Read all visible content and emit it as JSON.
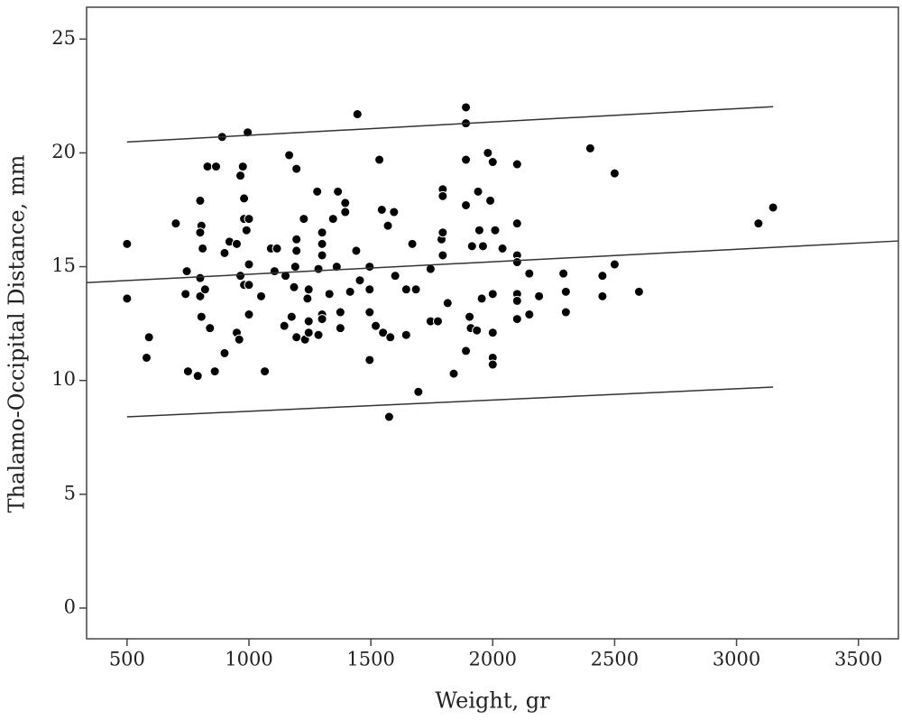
{
  "chart_data": {
    "type": "scatter",
    "x_label": "Weight, gr",
    "y_label": "Thalamo-Occipital Distance, mm",
    "xlim": [
      334,
      3664
    ],
    "ylim": [
      -1.35,
      26.4
    ],
    "xticks": [
      500,
      1000,
      1500,
      2000,
      2500,
      3000,
      3500
    ],
    "yticks": [
      0,
      5,
      10,
      15,
      20,
      25
    ],
    "series": [
      {
        "type": "scatter",
        "color": "#000000",
        "x": [
          500,
          500,
          580,
          590,
          700,
          745,
          740,
          750,
          790,
          800,
          805,
          800,
          810,
          800,
          800,
          820,
          805,
          840,
          830,
          865,
          860,
          890,
          900,
          900,
          920,
          950,
          950,
          960,
          965,
          965,
          975,
          980,
          990,
          980,
          1000,
          995,
          1000,
          980,
          1000,
          1000,
          1050,
          1065,
          1090,
          1115,
          1105,
          1150,
          1145,
          1165,
          1175,
          1185,
          1190,
          1195,
          1195,
          1195,
          1195,
          1225,
          1230,
          1240,
          1245,
          1245,
          1245,
          1280,
          1285,
          1285,
          1300,
          1300,
          1300,
          1300,
          1300,
          1330,
          1345,
          1360,
          1365,
          1375,
          1375,
          1395,
          1395,
          1415,
          1440,
          1455,
          1445,
          1495,
          1495,
          1495,
          1495,
          1520,
          1535,
          1545,
          1550,
          1570,
          1580,
          1575,
          1595,
          1600,
          1645,
          1645,
          1670,
          1685,
          1695,
          1745,
          1745,
          1775,
          1790,
          1795,
          1795,
          1795,
          1795,
          1815,
          1840,
          1890,
          1890,
          1890,
          1890,
          1890,
          1905,
          1910,
          1915,
          1935,
          1940,
          1945,
          1955,
          1980,
          1960,
          1990,
          2000,
          2000,
          2000,
          2000,
          2000,
          2010,
          2040,
          2100,
          2100,
          2100,
          2100,
          2100,
          2100,
          2100,
          2150,
          2150,
          2190,
          2290,
          2300,
          2300,
          2400,
          2450,
          2450,
          2500,
          2500,
          2600,
          3090,
          3150
        ],
        "values": [
          16.0,
          13.6,
          11.0,
          11.9,
          16.9,
          14.8,
          13.8,
          10.4,
          10.2,
          17.9,
          16.8,
          16.5,
          15.8,
          14.5,
          13.7,
          14.0,
          12.8,
          12.3,
          19.4,
          19.4,
          10.4,
          20.7,
          11.2,
          15.6,
          16.1,
          16.0,
          12.1,
          11.8,
          14.6,
          19.0,
          19.4,
          18.0,
          16.6,
          17.1,
          17.1,
          20.9,
          15.1,
          14.2,
          14.2,
          12.9,
          13.7,
          10.4,
          15.8,
          15.8,
          14.8,
          14.6,
          12.4,
          19.9,
          12.8,
          14.1,
          15.0,
          16.2,
          15.7,
          19.3,
          11.9,
          17.1,
          11.8,
          13.6,
          12.6,
          14.0,
          12.1,
          18.3,
          14.9,
          12.0,
          16.5,
          16.0,
          15.5,
          12.9,
          12.7,
          13.8,
          17.1,
          15.0,
          18.3,
          13.0,
          12.3,
          17.8,
          17.4,
          13.9,
          15.7,
          14.4,
          21.7,
          15.0,
          14.0,
          13.0,
          10.9,
          12.4,
          19.7,
          17.5,
          12.1,
          16.8,
          11.9,
          8.4,
          17.4,
          14.6,
          12.0,
          14.0,
          16.0,
          14.0,
          9.5,
          14.9,
          12.6,
          12.6,
          16.2,
          18.4,
          18.1,
          16.5,
          15.5,
          13.4,
          10.3,
          22.0,
          21.3,
          19.7,
          17.7,
          11.3,
          12.8,
          12.3,
          15.9,
          12.2,
          18.3,
          16.6,
          13.6,
          20.0,
          15.9,
          17.9,
          19.6,
          13.8,
          12.1,
          11.0,
          10.7,
          16.6,
          15.8,
          19.5,
          16.9,
          15.5,
          15.2,
          13.8,
          13.5,
          12.7,
          14.7,
          12.9,
          13.7,
          14.7,
          13.9,
          13.0,
          20.2,
          14.6,
          13.7,
          19.1,
          15.1,
          13.9,
          16.9,
          17.6
        ]
      },
      {
        "type": "line",
        "color": "#333333",
        "x": [
          500,
          3150
        ],
        "values": [
          20.48,
          22.03
        ]
      },
      {
        "type": "line",
        "color": "#333333",
        "x": [
          334,
          3664
        ],
        "values": [
          14.3,
          16.13
        ]
      },
      {
        "type": "line",
        "color": "#333333",
        "x": [
          500,
          3150
        ],
        "values": [
          8.4,
          9.71
        ]
      }
    ]
  }
}
